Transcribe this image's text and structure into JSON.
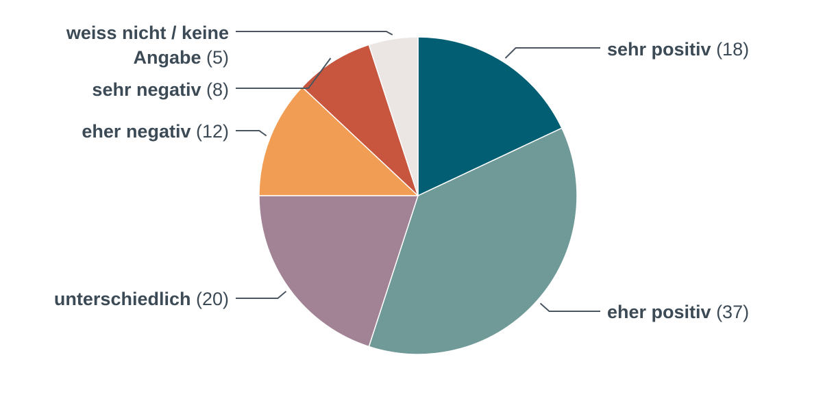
{
  "chart_data": {
    "type": "pie",
    "slices": [
      {
        "label": "sehr positiv",
        "value": 18,
        "value_label": "(18)",
        "color": "#025f73"
      },
      {
        "label": "eher positiv",
        "value": 37,
        "value_label": "(37)",
        "color": "#6f9a98"
      },
      {
        "label": "unterschiedlich",
        "value": 20,
        "value_label": "(20)",
        "color": "#a28395"
      },
      {
        "label": "eher negativ",
        "value": 12,
        "value_label": "(12)",
        "color": "#f19d54"
      },
      {
        "label": "sehr negativ",
        "value": 8,
        "value_label": "(8)",
        "color": "#c8553d"
      },
      {
        "label_lines": [
          "weiss nicht / keine",
          "Angabe"
        ],
        "label": "weiss nicht / keine Angabe",
        "value": 5,
        "value_label": "(5)",
        "color": "#ebe6e3"
      }
    ],
    "start": "top",
    "direction": "clockwise",
    "legend": "none",
    "labels": "outside with leader lines"
  }
}
